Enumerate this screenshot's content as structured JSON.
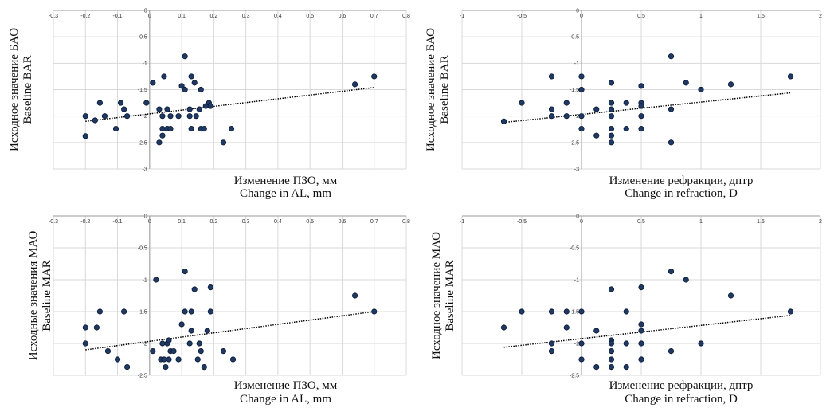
{
  "chart_data": [
    {
      "type": "scatter",
      "xlabel": [
        "Изменение ПЗО, мм",
        "Change in AL, mm"
      ],
      "ylabel": [
        "Исходное значение БАО",
        "Baseline BAR"
      ],
      "xlim": [
        -0.3,
        0.8
      ],
      "ylim": [
        -3,
        0
      ],
      "xticks": [
        "-0.3",
        "-0.2",
        "-0.1",
        "0",
        "0.1",
        "0.2",
        "0.3",
        "0.4",
        "0.5",
        "0.6",
        "0.7",
        "0.8"
      ],
      "yticks": [
        "0",
        "-0.5",
        "-1",
        "-1.5",
        "-2",
        "-2.5",
        "-3"
      ],
      "grid": true,
      "trendline": {
        "x": [
          -0.2,
          0.7
        ],
        "y": [
          -2.1,
          -1.46
        ]
      },
      "points": [
        [
          -0.2,
          -2.0
        ],
        [
          -0.2,
          -2.38
        ],
        [
          -0.17,
          -2.08
        ],
        [
          -0.155,
          -1.75
        ],
        [
          -0.14,
          -2.0
        ],
        [
          -0.105,
          -2.24
        ],
        [
          -0.09,
          -1.75
        ],
        [
          -0.08,
          -1.87
        ],
        [
          -0.07,
          -2.0
        ],
        [
          -0.01,
          -1.75
        ],
        [
          0.01,
          -1.37
        ],
        [
          0.03,
          -1.87
        ],
        [
          0.03,
          -2.5
        ],
        [
          0.04,
          -2.37
        ],
        [
          0.04,
          -2.0
        ],
        [
          0.04,
          -2.24
        ],
        [
          0.045,
          -1.25
        ],
        [
          0.055,
          -1.87
        ],
        [
          0.055,
          -2.24
        ],
        [
          0.065,
          -2.0
        ],
        [
          0.065,
          -2.24
        ],
        [
          0.09,
          -2.0
        ],
        [
          0.1,
          -1.43
        ],
        [
          0.11,
          -1.5
        ],
        [
          0.11,
          -0.87
        ],
        [
          0.125,
          -2.0
        ],
        [
          0.125,
          -1.87
        ],
        [
          0.13,
          -1.25
        ],
        [
          0.13,
          -2.24
        ],
        [
          0.14,
          -1.37
        ],
        [
          0.145,
          -2.0
        ],
        [
          0.155,
          -1.87
        ],
        [
          0.16,
          -1.5
        ],
        [
          0.16,
          -2.24
        ],
        [
          0.17,
          -2.24
        ],
        [
          0.175,
          -1.81
        ],
        [
          0.185,
          -1.75
        ],
        [
          0.19,
          -1.81
        ],
        [
          0.23,
          -2.5
        ],
        [
          0.255,
          -2.24
        ],
        [
          0.64,
          -1.4
        ],
        [
          0.7,
          -1.25
        ]
      ]
    },
    {
      "type": "scatter",
      "xlabel": [
        "Изменение рефракции, дптр",
        "Change in refraction, D"
      ],
      "ylabel": [
        "Исходное значение БАО",
        "Baseline BAR"
      ],
      "xlim": [
        -1,
        2
      ],
      "ylim": [
        -3,
        0
      ],
      "xticks": [
        "-1",
        "-0.5",
        "0",
        "0.5",
        "1",
        "1.5",
        "2"
      ],
      "yticks": [
        "0",
        "-0.5",
        "-1",
        "-1.5",
        "-2",
        "-2.5",
        "-3"
      ],
      "grid": true,
      "trendline": {
        "x": [
          -0.65,
          1.75
        ],
        "y": [
          -2.12,
          -1.56
        ]
      },
      "points": [
        [
          -0.65,
          -2.1
        ],
        [
          -0.5,
          -1.75
        ],
        [
          -0.25,
          -1.25
        ],
        [
          -0.25,
          -1.87
        ],
        [
          -0.25,
          -2.0
        ],
        [
          -0.125,
          -2.0
        ],
        [
          -0.125,
          -1.75
        ],
        [
          0.0,
          -1.25
        ],
        [
          0.0,
          -1.5
        ],
        [
          0.0,
          -2.0
        ],
        [
          0.0,
          -2.24
        ],
        [
          0.125,
          -1.87
        ],
        [
          0.125,
          -2.37
        ],
        [
          0.25,
          -1.37
        ],
        [
          0.25,
          -1.75
        ],
        [
          0.25,
          -1.87
        ],
        [
          0.25,
          -2.0
        ],
        [
          0.25,
          -2.24
        ],
        [
          0.25,
          -2.37
        ],
        [
          0.25,
          -2.5
        ],
        [
          0.375,
          -1.75
        ],
        [
          0.375,
          -2.24
        ],
        [
          0.5,
          -1.43
        ],
        [
          0.5,
          -1.75
        ],
        [
          0.5,
          -1.81
        ],
        [
          0.5,
          -2.0
        ],
        [
          0.5,
          -2.24
        ],
        [
          0.75,
          -0.87
        ],
        [
          0.75,
          -1.87
        ],
        [
          0.75,
          -2.5
        ],
        [
          0.875,
          -1.37
        ],
        [
          1.0,
          -1.5
        ],
        [
          1.25,
          -1.4
        ],
        [
          1.75,
          -1.25
        ]
      ]
    },
    {
      "type": "scatter",
      "xlabel": [
        "Изменение ПЗО, мм",
        "Change in AL, mm"
      ],
      "ylabel": [
        "Исходные значения МАО",
        "Baseline MAR"
      ],
      "xlim": [
        -0.3,
        0.8
      ],
      "ylim": [
        -2.5,
        0
      ],
      "xticks": [
        "-0.3",
        "-0.2",
        "-0.1",
        "0",
        "0.1",
        "0.2",
        "0.3",
        "0.4",
        "0.5",
        "0.6",
        "0.7",
        "0.8"
      ],
      "yticks": [
        "0",
        "-0.5",
        "-1",
        "-1.5",
        "-2",
        "-2.5"
      ],
      "grid": true,
      "trendline": {
        "x": [
          -0.2,
          0.7
        ],
        "y": [
          -2.1,
          -1.5
        ]
      },
      "points": [
        [
          -0.2,
          -1.75
        ],
        [
          -0.2,
          -2.0
        ],
        [
          -0.165,
          -1.75
        ],
        [
          -0.155,
          -1.5
        ],
        [
          -0.13,
          -2.12
        ],
        [
          -0.1,
          -2.25
        ],
        [
          -0.08,
          -1.5
        ],
        [
          -0.07,
          -2.37
        ],
        [
          0.01,
          -2.12
        ],
        [
          0.02,
          -1.0
        ],
        [
          0.035,
          -2.25
        ],
        [
          0.04,
          -2.0
        ],
        [
          0.045,
          -2.25
        ],
        [
          0.05,
          -2.37
        ],
        [
          0.055,
          -2.0
        ],
        [
          0.06,
          -2.25
        ],
        [
          0.06,
          -1.95
        ],
        [
          0.065,
          -2.12
        ],
        [
          0.075,
          -2.12
        ],
        [
          0.09,
          -2.25
        ],
        [
          0.1,
          -1.7
        ],
        [
          0.11,
          -0.87
        ],
        [
          0.11,
          -1.5
        ],
        [
          0.125,
          -2.0
        ],
        [
          0.13,
          -1.8
        ],
        [
          0.13,
          -1.5
        ],
        [
          0.14,
          -1.15
        ],
        [
          0.15,
          -2.25
        ],
        [
          0.155,
          -2.0
        ],
        [
          0.16,
          -2.12
        ],
        [
          0.17,
          -2.37
        ],
        [
          0.18,
          -1.8
        ],
        [
          0.19,
          -1.12
        ],
        [
          0.19,
          -1.5
        ],
        [
          0.23,
          -2.12
        ],
        [
          0.26,
          -2.25
        ],
        [
          0.64,
          -1.25
        ],
        [
          0.7,
          -1.5
        ]
      ]
    },
    {
      "type": "scatter",
      "xlabel": [
        "Изменение рефракции, дптр",
        "Change in refraction, D"
      ],
      "ylabel": [
        "Исходное значение МАО",
        "Baseline MAR"
      ],
      "xlim": [
        -1,
        2
      ],
      "ylim": [
        -2.5,
        0
      ],
      "xticks": [
        "-1",
        "-0.5",
        "0",
        "0.5",
        "1",
        "1.5",
        "2"
      ],
      "yticks": [
        "0",
        "-0.5",
        "-1",
        "-1.5",
        "-2",
        "-2.5"
      ],
      "grid": true,
      "trendline": {
        "x": [
          -0.65,
          1.75
        ],
        "y": [
          -2.06,
          -1.56
        ]
      },
      "points": [
        [
          -0.65,
          -1.75
        ],
        [
          -0.5,
          -1.5
        ],
        [
          -0.25,
          -1.5
        ],
        [
          -0.25,
          -2.0
        ],
        [
          -0.25,
          -2.12
        ],
        [
          -0.125,
          -1.5
        ],
        [
          -0.125,
          -1.75
        ],
        [
          0.0,
          -1.5
        ],
        [
          0.0,
          -2.0
        ],
        [
          0.0,
          -2.25
        ],
        [
          0.125,
          -1.8
        ],
        [
          0.125,
          -2.37
        ],
        [
          0.25,
          -1.15
        ],
        [
          0.25,
          -1.95
        ],
        [
          0.25,
          -2.0
        ],
        [
          0.25,
          -2.12
        ],
        [
          0.25,
          -2.25
        ],
        [
          0.25,
          -2.37
        ],
        [
          0.375,
          -1.5
        ],
        [
          0.375,
          -2.0
        ],
        [
          0.375,
          -2.37
        ],
        [
          0.5,
          -1.12
        ],
        [
          0.5,
          -1.7
        ],
        [
          0.5,
          -1.8
        ],
        [
          0.5,
          -2.0
        ],
        [
          0.5,
          -2.25
        ],
        [
          0.75,
          -0.87
        ],
        [
          0.75,
          -2.12
        ],
        [
          0.875,
          -1.0
        ],
        [
          1.0,
          -2.0
        ],
        [
          1.25,
          -1.25
        ],
        [
          1.75,
          -1.5
        ]
      ]
    }
  ]
}
